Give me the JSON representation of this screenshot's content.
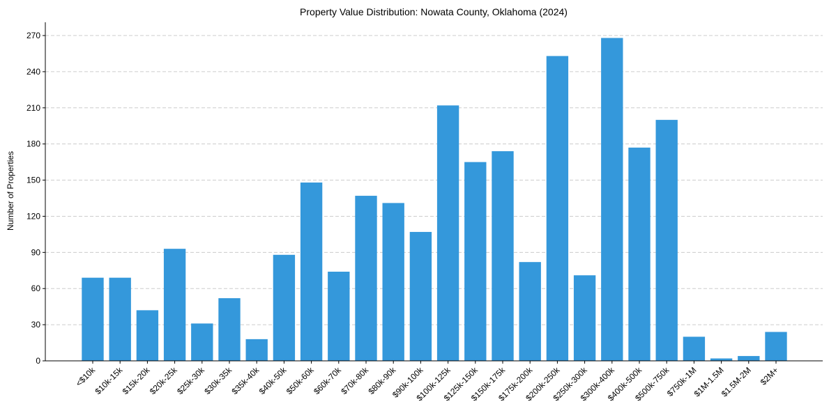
{
  "chart_data": {
    "type": "bar",
    "title": "Property Value Distribution: Nowata County, Oklahoma (2024)",
    "xlabel": "",
    "ylabel": "Number of Properties",
    "categories": [
      "<$10k",
      "$10k-15k",
      "$15k-20k",
      "$20k-25k",
      "$25k-30k",
      "$30k-35k",
      "$35k-40k",
      "$40k-50k",
      "$50k-60k",
      "$60k-70k",
      "$70k-80k",
      "$80k-90k",
      "$90k-100k",
      "$100k-125k",
      "$125k-150k",
      "$150k-175k",
      "$175k-200k",
      "$200k-250k",
      "$250k-300k",
      "$300k-400k",
      "$400k-500k",
      "$500k-750k",
      "$750k-1M",
      "$1M-1.5M",
      "$1.5M-2M",
      "$2M+"
    ],
    "values": [
      69,
      69,
      42,
      93,
      31,
      52,
      18,
      88,
      148,
      74,
      137,
      131,
      107,
      212,
      165,
      174,
      82,
      253,
      71,
      268,
      177,
      200,
      20,
      2,
      4,
      24
    ],
    "ylim": [
      0,
      281
    ],
    "yticks": [
      0,
      30,
      60,
      90,
      120,
      150,
      180,
      210,
      240,
      270
    ],
    "grid": "y-dashed",
    "colors": {
      "bar": "#3498db",
      "grid": "#cccccc",
      "axis": "#000000"
    }
  }
}
